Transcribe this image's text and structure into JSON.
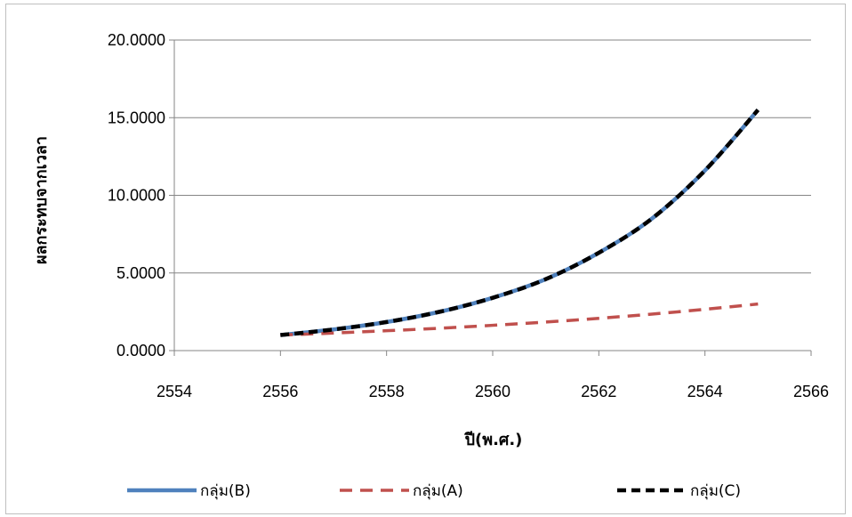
{
  "chart_data": {
    "type": "line",
    "xlabel": "ปี(พ.ศ.)",
    "ylabel": "ผลกระทบจากเวลา",
    "xlim": [
      2554,
      2566
    ],
    "ylim": [
      0,
      20
    ],
    "xticks": [
      2554,
      2556,
      2558,
      2560,
      2562,
      2564,
      2566
    ],
    "xtick_labels": [
      "2554",
      "2556",
      "2558",
      "2560",
      "2562",
      "2564",
      "2566"
    ],
    "yticks": [
      0,
      5,
      10,
      15,
      20
    ],
    "ytick_labels": [
      "0.0000",
      "5.0000",
      "10.0000",
      "15.0000",
      "20.0000"
    ],
    "grid": "horizontal",
    "legend_position": "bottom",
    "series": [
      {
        "name": "กลุ่ม(B)",
        "color": "#4f81bd",
        "style": "solid",
        "x": [
          2556,
          2557,
          2558,
          2559,
          2560,
          2561,
          2562,
          2563,
          2564,
          2565
        ],
        "y": [
          1.0,
          1.36,
          1.84,
          2.5,
          3.4,
          4.6,
          6.3,
          8.5,
          11.6,
          15.5
        ]
      },
      {
        "name": "กลุ่ม(A)",
        "color": "#c0504d",
        "style": "dashed",
        "x": [
          2556,
          2557,
          2558,
          2559,
          2560,
          2561,
          2562,
          2563,
          2564,
          2565
        ],
        "y": [
          1.0,
          1.13,
          1.28,
          1.44,
          1.63,
          1.84,
          2.08,
          2.35,
          2.66,
          3.0
        ]
      },
      {
        "name": "กลุ่ม(C)",
        "color": "#000000",
        "style": "dashed-bold",
        "x": [
          2556,
          2557,
          2558,
          2559,
          2560,
          2561,
          2562,
          2563,
          2564,
          2565
        ],
        "y": [
          1.0,
          1.36,
          1.84,
          2.5,
          3.4,
          4.6,
          6.3,
          8.5,
          11.6,
          15.5
        ]
      }
    ]
  }
}
